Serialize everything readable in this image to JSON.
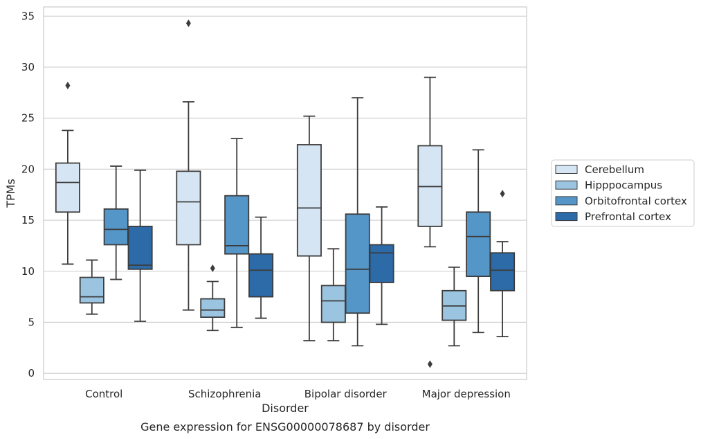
{
  "chart_data": {
    "type": "box",
    "caption": "Gene expression for ENSG00000078687 by disorder",
    "xlabel": "Disorder",
    "ylabel": "TPMs",
    "ylim": [
      -0.6,
      35.9
    ],
    "yticks": [
      0,
      5,
      10,
      15,
      20,
      25,
      30,
      35
    ],
    "grid": true,
    "legend_position": "right",
    "categories": [
      "Control",
      "Schizophrenia",
      "Bipolar disorder",
      "Major depression"
    ],
    "series": [
      {
        "name": "Cerebellum",
        "color": "#d6e5f3",
        "boxes": [
          {
            "whislo": 10.7,
            "q1": 15.8,
            "med": 18.7,
            "q3": 20.6,
            "whishi": 23.8,
            "fliers": [
              28.2
            ]
          },
          {
            "whislo": 6.2,
            "q1": 12.6,
            "med": 16.8,
            "q3": 19.8,
            "whishi": 26.6,
            "fliers": [
              34.3
            ]
          },
          {
            "whislo": 3.2,
            "q1": 11.5,
            "med": 16.2,
            "q3": 22.4,
            "whishi": 25.2,
            "fliers": []
          },
          {
            "whislo": 12.4,
            "q1": 14.4,
            "med": 18.3,
            "q3": 22.3,
            "whishi": 29.0,
            "fliers": [
              0.9
            ]
          }
        ]
      },
      {
        "name": "Hipppocampus",
        "color": "#9ac4df",
        "boxes": [
          {
            "whislo": 5.8,
            "q1": 6.9,
            "med": 7.5,
            "q3": 9.4,
            "whishi": 11.1,
            "fliers": []
          },
          {
            "whislo": 4.2,
            "q1": 5.5,
            "med": 6.2,
            "q3": 7.3,
            "whishi": 9.0,
            "fliers": [
              10.3
            ]
          },
          {
            "whislo": 3.2,
            "q1": 5.0,
            "med": 7.1,
            "q3": 8.6,
            "whishi": 12.2,
            "fliers": []
          },
          {
            "whislo": 2.7,
            "q1": 5.2,
            "med": 6.6,
            "q3": 8.1,
            "whishi": 10.4,
            "fliers": []
          }
        ]
      },
      {
        "name": "Orbitofrontal cortex",
        "color": "#5596c8",
        "boxes": [
          {
            "whislo": 9.2,
            "q1": 12.6,
            "med": 14.1,
            "q3": 16.1,
            "whishi": 20.3,
            "fliers": []
          },
          {
            "whislo": 4.5,
            "q1": 11.7,
            "med": 12.5,
            "q3": 17.4,
            "whishi": 23.0,
            "fliers": []
          },
          {
            "whislo": 2.7,
            "q1": 5.9,
            "med": 10.2,
            "q3": 15.6,
            "whishi": 27.0,
            "fliers": []
          },
          {
            "whislo": 4.0,
            "q1": 9.5,
            "med": 13.4,
            "q3": 15.8,
            "whishi": 21.9,
            "fliers": []
          }
        ]
      },
      {
        "name": "Prefrontal cortex",
        "color": "#2c6aa8",
        "boxes": [
          {
            "whislo": 5.1,
            "q1": 10.2,
            "med": 10.6,
            "q3": 14.4,
            "whishi": 19.9,
            "fliers": []
          },
          {
            "whislo": 5.4,
            "q1": 7.5,
            "med": 10.1,
            "q3": 11.7,
            "whishi": 15.3,
            "fliers": []
          },
          {
            "whislo": 4.8,
            "q1": 8.9,
            "med": 11.8,
            "q3": 12.6,
            "whishi": 16.3,
            "fliers": []
          },
          {
            "whislo": 3.6,
            "q1": 8.1,
            "med": 10.1,
            "q3": 11.8,
            "whishi": 12.9,
            "fliers": [
              17.6
            ]
          }
        ]
      }
    ]
  }
}
